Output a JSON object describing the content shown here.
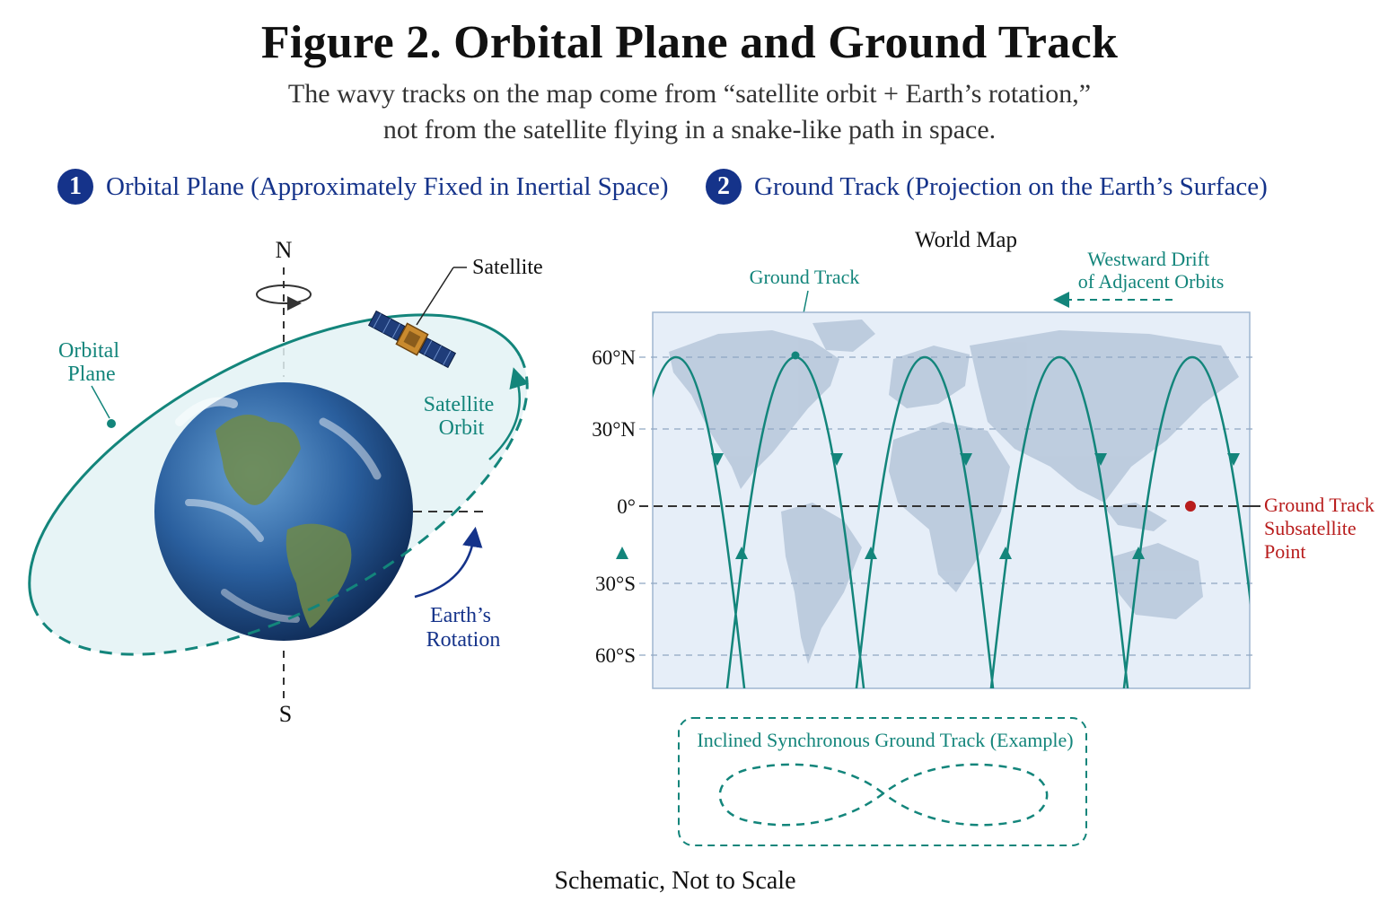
{
  "title": "Figure 2. Orbital Plane and Ground Track",
  "subtitle_line1": "The wavy tracks on the map come from “satellite orbit + Earth’s rotation,”",
  "subtitle_line2": "not from the satellite flying in a snake-like path in space.",
  "section1": {
    "number": "1",
    "title": "Orbital Plane (Approximately Fixed in Inertial Space)"
  },
  "section2": {
    "number": "2",
    "title": "Ground Track (Projection on the Earth’s Surface)"
  },
  "left_panel": {
    "north_label": "N",
    "south_label": "S",
    "satellite_label": "Satellite",
    "orbital_plane_label": [
      "Orbital",
      "Plane"
    ],
    "satellite_orbit_label": [
      "Satellite",
      "Orbit"
    ],
    "earth_rotation_label": [
      "Earth’s",
      "Rotation"
    ]
  },
  "right_panel": {
    "map_title": "World Map",
    "ground_track_label": "Ground Track",
    "westward_drift_label": [
      "Westward Drift",
      "of Adjacent Orbits"
    ],
    "latitude_labels": [
      "60°N",
      "30°N",
      "0°",
      "30°S",
      "60°S"
    ],
    "subsatellite_label": [
      "Ground Track",
      "Subsatellite",
      "Point"
    ],
    "inset_title": "Inclined Synchronous Ground Track (Example)"
  },
  "colors": {
    "teal": "#13857b",
    "navy": "#15338a",
    "red": "#b81c1c",
    "map_bg": "#e6eef8",
    "land": "#b9c9dc"
  },
  "footer": "Schematic, Not to Scale"
}
